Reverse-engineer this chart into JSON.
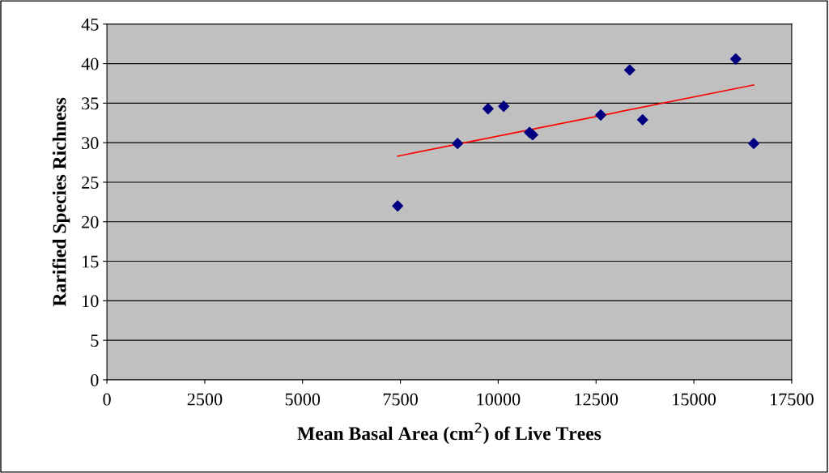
{
  "chart_data": {
    "type": "scatter",
    "xlabel": "Mean Basal Area (cm$^{2}$) of Live Trees",
    "ylabel": "Rarified Species Richness",
    "xlim": [
      0,
      17500
    ],
    "xticks": [
      0,
      2500,
      5000,
      7500,
      10000,
      12500,
      15000,
      17500
    ],
    "ylim": [
      0,
      45
    ],
    "yticks": [
      0,
      5,
      10,
      15,
      20,
      25,
      30,
      35,
      40,
      45
    ],
    "grid": "y",
    "legend": false,
    "series": [
      {
        "color": "#000080",
        "marker": "diamond",
        "x": [
          7430,
          8960,
          9740,
          10140,
          10800,
          10880,
          12620,
          13360,
          13690,
          16070,
          16530
        ],
        "values": [
          22.0,
          29.9,
          34.3,
          34.6,
          31.3,
          31.0,
          33.5,
          39.2,
          32.9,
          40.6,
          29.9
        ]
      },
      {
        "type": "line",
        "color": "#ff0000",
        "marker": "none",
        "x": [
          7430,
          16530
        ],
        "values": [
          28.3,
          37.3
        ]
      }
    ]
  }
}
